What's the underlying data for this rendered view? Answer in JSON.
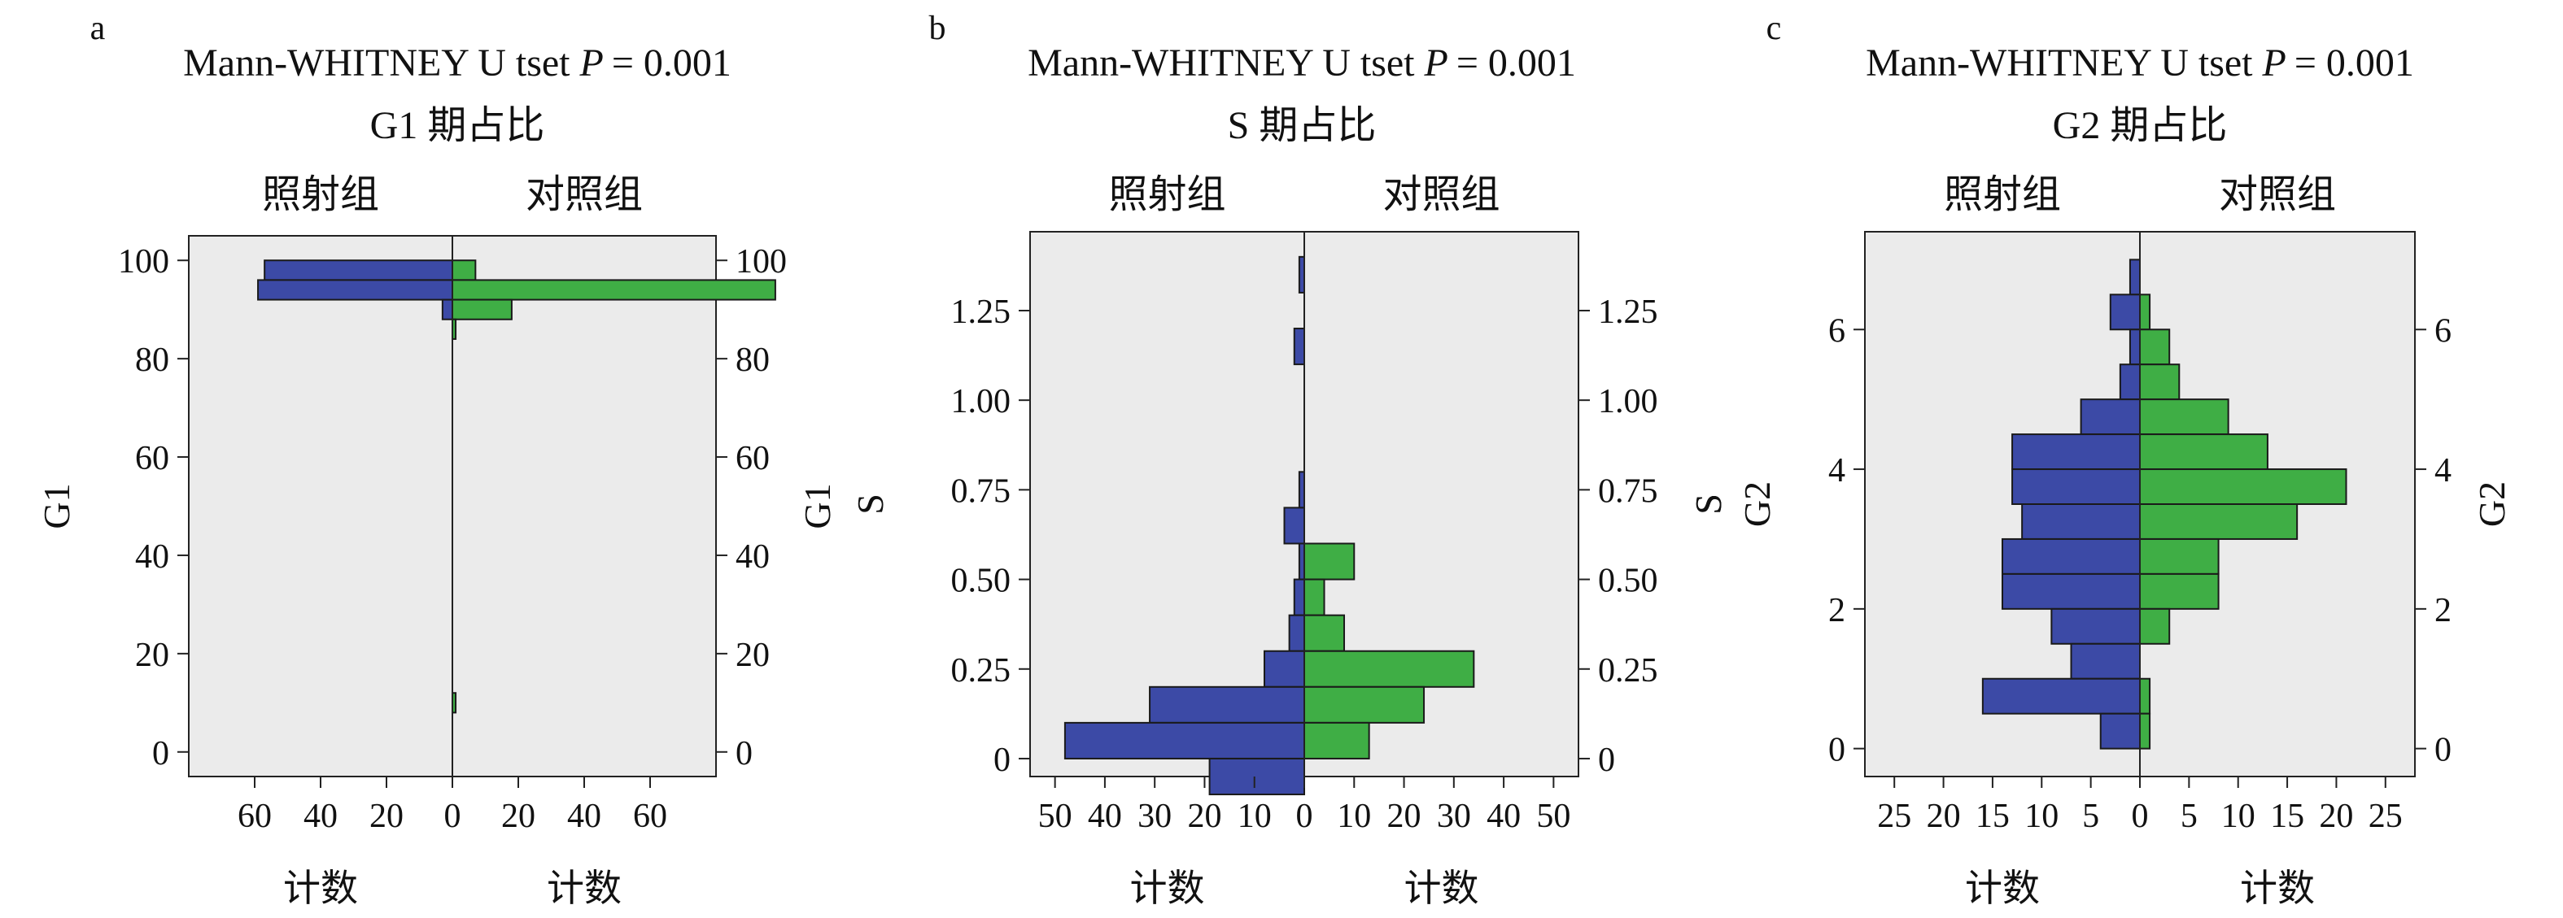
{
  "colors": {
    "plot_bg": "#ebebeb",
    "irradiated": "#3c4aa6",
    "control": "#3fae45",
    "bar_edge": "#1a1a1a",
    "axis": "#222222"
  },
  "chart_data": [
    {
      "type": "bar",
      "panel_label": "a",
      "title_test": "Mann-WHITNEY U tset",
      "title_p_letter": "P",
      "title_p_value": "= 0.001",
      "subtitle": "G1 期占比",
      "left_group": "照射组",
      "right_group": "对照组",
      "ylabel": "G1",
      "ylabel_right": "G1",
      "xlabel_left": "计数",
      "xlabel_right": "计数",
      "ylim": [
        -5,
        105
      ],
      "xlim": 80,
      "yticks": [
        0,
        20,
        40,
        60,
        80,
        100
      ],
      "ytick_labels": [
        "0",
        "20",
        "40",
        "60",
        "80",
        "100"
      ],
      "xticks_left": [
        60,
        40,
        20
      ],
      "xtick_labels_left": [
        "60",
        "40",
        "20"
      ],
      "xtick_zero_label": "0",
      "xticks_right": [
        20,
        40,
        60
      ],
      "xtick_labels_right": [
        "20",
        "40",
        "60"
      ],
      "grid": false,
      "series": [
        {
          "name": "照射组",
          "side": "left",
          "bins": [
            [
              96,
              100,
              57
            ],
            [
              92,
              96,
              59
            ],
            [
              88,
              92,
              3
            ]
          ]
        },
        {
          "name": "对照组",
          "side": "right",
          "bins": [
            [
              96,
              100,
              7
            ],
            [
              92,
              96,
              98
            ],
            [
              88,
              92,
              18
            ],
            [
              84,
              88,
              1
            ],
            [
              8,
              12,
              1
            ]
          ]
        }
      ]
    },
    {
      "type": "bar",
      "panel_label": "b",
      "title_test": "Mann-WHITNEY U tset",
      "title_p_letter": "P",
      "title_p_value": "= 0.001",
      "subtitle": "S 期占比",
      "left_group": "照射组",
      "right_group": "对照组",
      "ylabel": "S",
      "ylabel_right": "S",
      "xlabel_left": "计数",
      "xlabel_right": "计数",
      "ylim": [
        -0.05,
        1.47
      ],
      "xlim": 55,
      "yticks": [
        0,
        0.25,
        0.5,
        0.75,
        1.0,
        1.25
      ],
      "ytick_labels": [
        "0",
        "0.25",
        "0.50",
        "0.75",
        "1.00",
        "1.25"
      ],
      "xticks_left": [
        50,
        40,
        30,
        20,
        10
      ],
      "xtick_labels_left": [
        "50",
        "40",
        "30",
        "20",
        "10"
      ],
      "xtick_zero_label": "0",
      "xticks_right": [
        10,
        20,
        30,
        40,
        50
      ],
      "xtick_labels_right": [
        "10",
        "20",
        "30",
        "40",
        "50"
      ],
      "grid": false,
      "series": [
        {
          "name": "照射组",
          "side": "left",
          "bins": [
            [
              1.3,
              1.4,
              1
            ],
            [
              1.1,
              1.2,
              2
            ],
            [
              0.7,
              0.8,
              1
            ],
            [
              0.6,
              0.7,
              4
            ],
            [
              0.5,
              0.6,
              1
            ],
            [
              0.4,
              0.5,
              2
            ],
            [
              0.3,
              0.4,
              3
            ],
            [
              0.2,
              0.3,
              8
            ],
            [
              0.1,
              0.2,
              31
            ],
            [
              0.0,
              0.1,
              48
            ],
            [
              -0.1,
              0.0,
              19
            ]
          ]
        },
        {
          "name": "对照组",
          "side": "right",
          "bins": [
            [
              0.5,
              0.6,
              10
            ],
            [
              0.4,
              0.5,
              4
            ],
            [
              0.3,
              0.4,
              8
            ],
            [
              0.2,
              0.3,
              34
            ],
            [
              0.1,
              0.2,
              24
            ],
            [
              0.0,
              0.1,
              13
            ]
          ]
        }
      ]
    },
    {
      "type": "bar",
      "panel_label": "c",
      "title_test": "Mann-WHITNEY U tset",
      "title_p_letter": "P",
      "title_p_value": "= 0.001",
      "subtitle": "G2 期占比",
      "left_group": "照射组",
      "right_group": "对照组",
      "ylabel": "G2",
      "ylabel_right": "G2",
      "ylabel_extra": "S",
      "xlabel_left": "计数",
      "xlabel_right": "计数",
      "ylim": [
        -0.4,
        7.4
      ],
      "xlim": 28,
      "yticks": [
        0,
        2,
        4,
        6
      ],
      "ytick_labels": [
        "0",
        "2",
        "4",
        "6"
      ],
      "xticks_left": [
        25,
        20,
        15,
        10,
        5
      ],
      "xtick_labels_left": [
        "25",
        "20",
        "15",
        "10",
        "5"
      ],
      "xtick_zero_label": "0",
      "xticks_right": [
        5,
        10,
        15,
        20,
        25
      ],
      "xtick_labels_right": [
        "5",
        "10",
        "15",
        "20",
        "25"
      ],
      "grid": false,
      "series": [
        {
          "name": "照射组",
          "side": "left",
          "bins": [
            [
              6.5,
              7.0,
              1
            ],
            [
              6.0,
              6.5,
              3
            ],
            [
              5.5,
              6.0,
              1
            ],
            [
              5.0,
              5.5,
              2
            ],
            [
              4.5,
              5.0,
              6
            ],
            [
              4.0,
              4.5,
              13
            ],
            [
              3.5,
              4.0,
              13
            ],
            [
              3.0,
              3.5,
              12
            ],
            [
              2.5,
              3.0,
              14
            ],
            [
              2.0,
              2.5,
              14
            ],
            [
              1.5,
              2.0,
              9
            ],
            [
              1.0,
              1.5,
              7
            ],
            [
              0.5,
              1.0,
              16
            ],
            [
              0.0,
              0.5,
              4
            ]
          ]
        },
        {
          "name": "对照组",
          "side": "right",
          "bins": [
            [
              6.0,
              6.5,
              1
            ],
            [
              5.5,
              6.0,
              3
            ],
            [
              5.0,
              5.5,
              4
            ],
            [
              4.5,
              5.0,
              9
            ],
            [
              4.0,
              4.5,
              13
            ],
            [
              3.5,
              4.0,
              21
            ],
            [
              3.0,
              3.5,
              16
            ],
            [
              2.5,
              3.0,
              8
            ],
            [
              2.0,
              2.5,
              8
            ],
            [
              1.5,
              2.0,
              3
            ],
            [
              0.5,
              1.0,
              1
            ],
            [
              0.0,
              0.5,
              1
            ]
          ]
        }
      ]
    }
  ]
}
